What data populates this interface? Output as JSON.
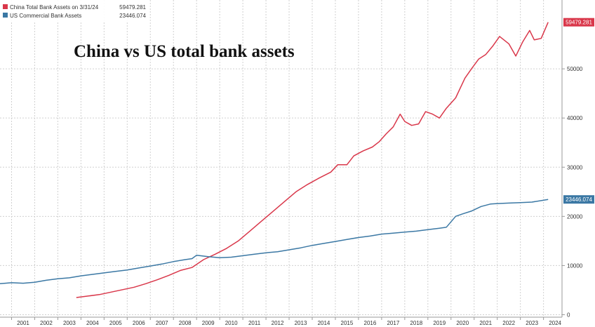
{
  "chart_data": {
    "type": "line",
    "title": "China vs US total bank assets",
    "legend": {
      "placement": "top-left",
      "entries": [
        {
          "label": "China Total Bank Assets on 3/31/24",
          "value": "59479.281",
          "color": "#d9374a"
        },
        {
          "label": "US Commercial Bank Assets",
          "value": "23446.074",
          "color": "#3b78a4"
        }
      ]
    },
    "x_ticks": [
      "2001",
      "2002",
      "2003",
      "2004",
      "2005",
      "2006",
      "2007",
      "2008",
      "2009",
      "2010",
      "2011",
      "2012",
      "2013",
      "2014",
      "2015",
      "2016",
      "2017",
      "2018",
      "2019",
      "2020",
      "2021",
      "2022",
      "2023",
      "2024"
    ],
    "xlim": [
      2000.5,
      2024.8
    ],
    "y_ticks": [
      0,
      10000,
      20000,
      30000,
      40000,
      50000
    ],
    "ylim": [
      -500,
      64000
    ],
    "grid": true,
    "axis_side": "right",
    "series": [
      {
        "name": "China Total Bank Assets on 3/31/24",
        "color": "#d9374a",
        "end_label": "59479.281",
        "x": [
          2003.8,
          2004.3,
          2004.8,
          2005.3,
          2005.8,
          2006.3,
          2006.8,
          2007.3,
          2007.8,
          2008.3,
          2008.8,
          2009.3,
          2009.8,
          2010.3,
          2010.8,
          2011.3,
          2011.8,
          2012.3,
          2012.8,
          2013.3,
          2013.8,
          2014.3,
          2014.8,
          2015.1,
          2015.5,
          2015.8,
          2016.2,
          2016.6,
          2016.9,
          2017.2,
          2017.5,
          2017.8,
          2018.0,
          2018.3,
          2018.6,
          2018.9,
          2019.2,
          2019.5,
          2019.8,
          2020.2,
          2020.6,
          2020.9,
          2021.2,
          2021.5,
          2021.8,
          2022.1,
          2022.5,
          2022.8,
          2023.1,
          2023.4,
          2023.6,
          2023.9,
          2024.2
        ],
        "y": [
          3500,
          3800,
          4100,
          4600,
          5100,
          5600,
          6300,
          7100,
          8000,
          9000,
          9600,
          11200,
          12300,
          13500,
          15000,
          17000,
          19000,
          21000,
          23000,
          25000,
          26500,
          27800,
          29000,
          30500,
          30500,
          32300,
          33300,
          34100,
          35200,
          36800,
          38200,
          40800,
          39300,
          38500,
          38800,
          41300,
          40800,
          40000,
          42000,
          44100,
          48100,
          50100,
          52000,
          52900,
          54600,
          56600,
          55100,
          52600,
          55500,
          57800,
          55900,
          56200,
          59479
        ]
      },
      {
        "name": "US Commercial Bank Assets",
        "color": "#3b78a4",
        "end_label": "23446.074",
        "x": [
          2000.5,
          2001.0,
          2001.5,
          2002.0,
          2002.5,
          2003.0,
          2003.5,
          2004.0,
          2004.5,
          2005.0,
          2005.5,
          2006.0,
          2006.5,
          2007.0,
          2007.5,
          2008.0,
          2008.5,
          2008.8,
          2009.0,
          2009.5,
          2010.0,
          2010.5,
          2011.0,
          2011.5,
          2012.0,
          2012.5,
          2013.0,
          2013.5,
          2014.0,
          2014.5,
          2015.0,
          2015.5,
          2016.0,
          2016.5,
          2017.0,
          2017.5,
          2018.0,
          2018.5,
          2019.0,
          2019.5,
          2019.8,
          2020.2,
          2020.5,
          2020.9,
          2021.3,
          2021.7,
          2022.0,
          2022.5,
          2023.0,
          2023.5,
          2024.2
        ],
        "y": [
          6300,
          6500,
          6400,
          6600,
          7000,
          7300,
          7500,
          7900,
          8200,
          8500,
          8800,
          9100,
          9500,
          9900,
          10300,
          10800,
          11200,
          11400,
          12100,
          11800,
          11600,
          11700,
          12000,
          12300,
          12600,
          12800,
          13200,
          13600,
          14100,
          14500,
          14900,
          15300,
          15700,
          16000,
          16400,
          16600,
          16800,
          17000,
          17300,
          17600,
          17800,
          20000,
          20500,
          21100,
          22000,
          22500,
          22600,
          22700,
          22800,
          22900,
          23446
        ]
      }
    ]
  }
}
